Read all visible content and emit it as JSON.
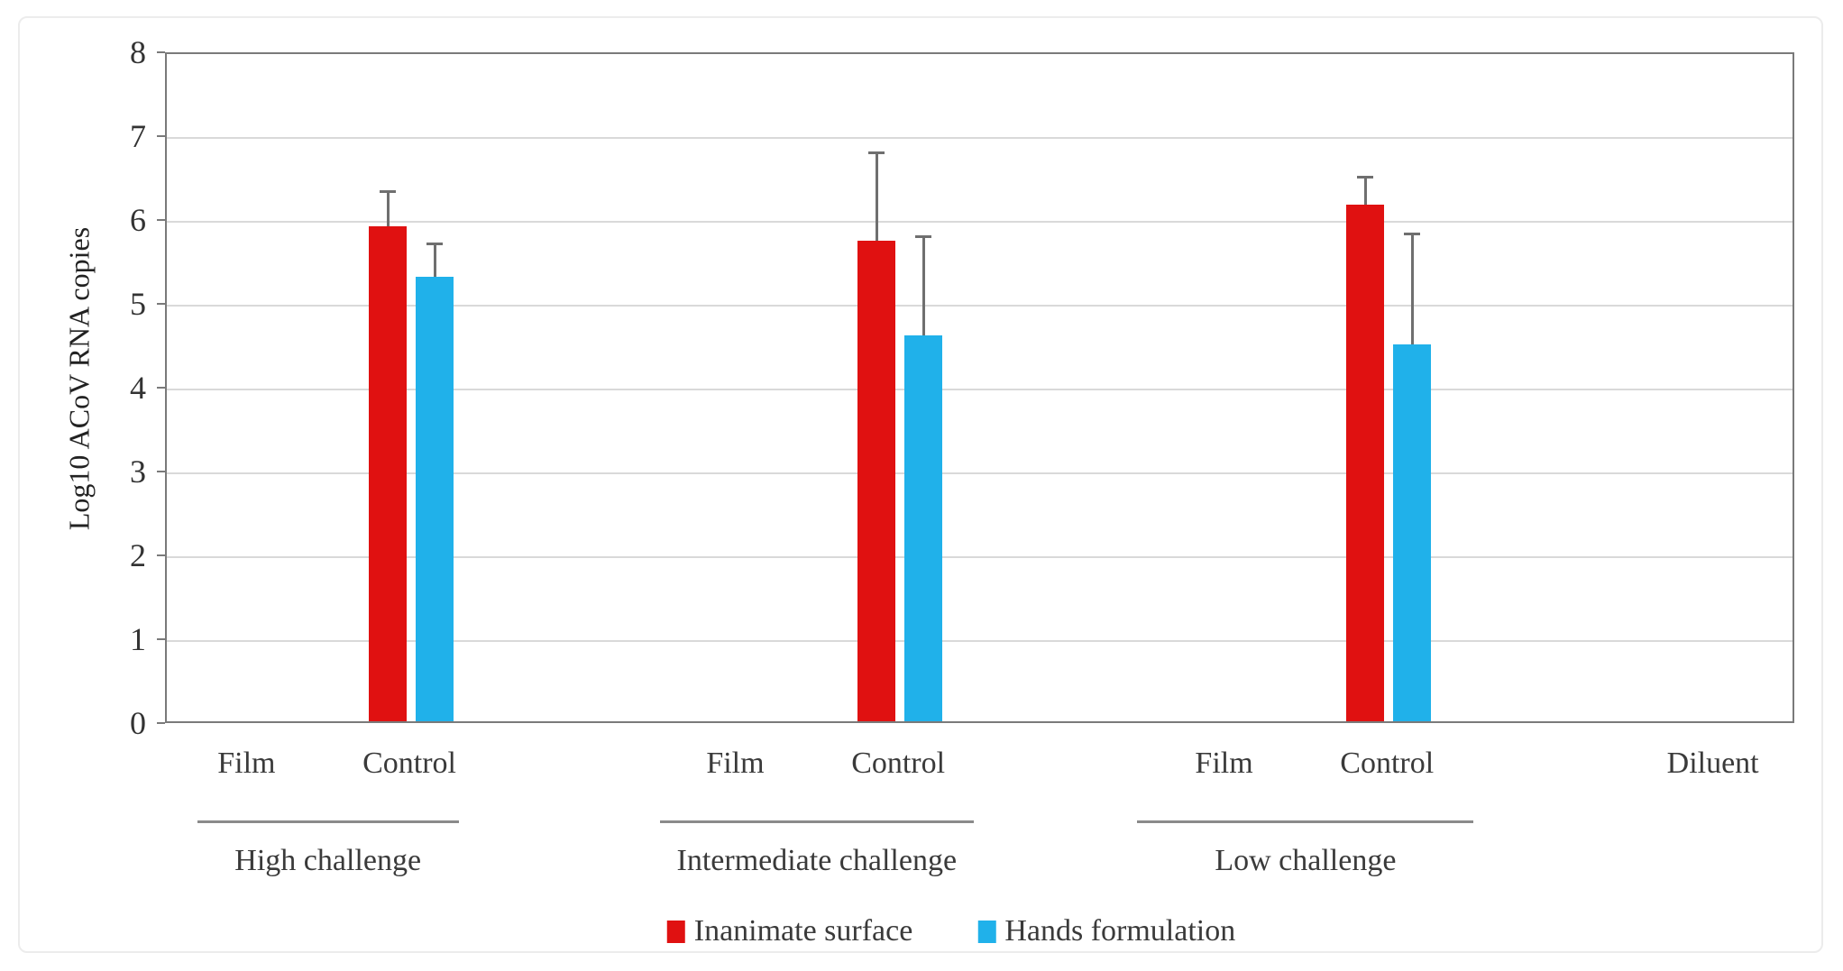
{
  "figure": {
    "background_color": "#ffffff",
    "border_color": "#ececec",
    "axis_color": "#7a7a7a",
    "gridline_color": "#d9d9d9",
    "error_bar_color": "#6f6f6f",
    "text_color": "#3a3a3a"
  },
  "chart_data": {
    "type": "bar",
    "title": "",
    "ylabel": "Log10 ACoV RNA copies",
    "xlabel": "",
    "ylim": [
      0,
      8
    ],
    "yticks": [
      "0",
      "1",
      "2",
      "3",
      "4",
      "5",
      "6",
      "7",
      "8"
    ],
    "grid": true,
    "legend_position": "bottom",
    "categories": [
      "Film",
      "Control",
      "",
      "Film",
      "Control",
      "",
      "Film",
      "Control",
      "",
      "Diluent"
    ],
    "series": [
      {
        "name": "Inanimate surface",
        "color": "#e01111"
      },
      {
        "name": "Hands formulation",
        "color": "#20b1ea"
      }
    ],
    "slots": [
      {
        "category": "Film",
        "bars": []
      },
      {
        "category": "Control",
        "bars": [
          {
            "series": 0,
            "value": 5.9,
            "error_top": 6.33
          },
          {
            "series": 1,
            "value": 5.3,
            "error_top": 5.71
          }
        ]
      },
      {
        "category": "",
        "bars": []
      },
      {
        "category": "Film",
        "bars": []
      },
      {
        "category": "Control",
        "bars": [
          {
            "series": 0,
            "value": 5.73,
            "error_top": 6.8
          },
          {
            "series": 1,
            "value": 4.6,
            "error_top": 5.8
          }
        ]
      },
      {
        "category": "",
        "bars": []
      },
      {
        "category": "Film",
        "bars": []
      },
      {
        "category": "Control",
        "bars": [
          {
            "series": 0,
            "value": 6.16,
            "error_top": 6.51
          },
          {
            "series": 1,
            "value": 4.5,
            "error_top": 5.83
          }
        ]
      },
      {
        "category": "",
        "bars": []
      },
      {
        "category": "Diluent",
        "bars": []
      }
    ],
    "groups": [
      {
        "label": "High challenge",
        "slot_start": 0,
        "slot_end": 1
      },
      {
        "label": "Intermediate challenge",
        "slot_start": 3,
        "slot_end": 4
      },
      {
        "label": "Low challenge",
        "slot_start": 6,
        "slot_end": 7
      }
    ]
  }
}
